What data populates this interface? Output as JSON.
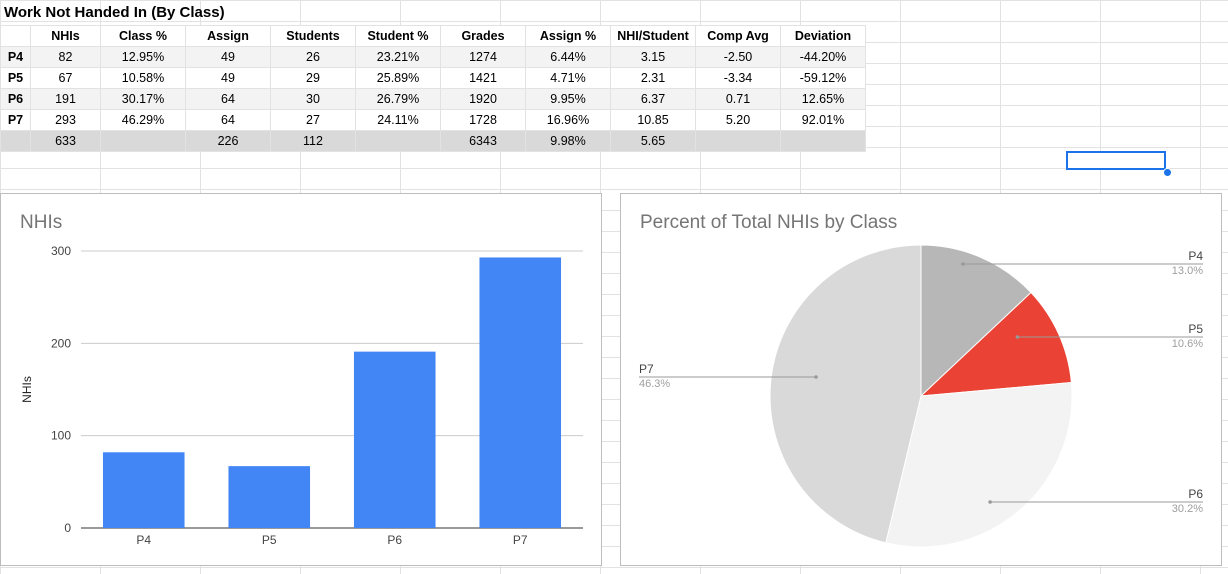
{
  "sheet": {
    "title": "Work Not Handed In (By Class)",
    "headers": [
      "NHIs",
      "Class %",
      "Assign",
      "Students",
      "Student %",
      "Grades",
      "Assign %",
      "NHI/Student",
      "Comp Avg",
      "Deviation"
    ],
    "rows": [
      {
        "label": "P4",
        "cells": [
          "82",
          "12.95%",
          "49",
          "26",
          "23.21%",
          "1274",
          "6.44%",
          "3.15",
          "-2.50",
          "-44.20%"
        ]
      },
      {
        "label": "P5",
        "cells": [
          "67",
          "10.58%",
          "49",
          "29",
          "25.89%",
          "1421",
          "4.71%",
          "2.31",
          "-3.34",
          "-59.12%"
        ]
      },
      {
        "label": "P6",
        "cells": [
          "191",
          "30.17%",
          "64",
          "30",
          "26.79%",
          "1920",
          "9.95%",
          "6.37",
          "0.71",
          "12.65%"
        ]
      },
      {
        "label": "P7",
        "cells": [
          "293",
          "46.29%",
          "64",
          "27",
          "24.11%",
          "1728",
          "16.96%",
          "10.85",
          "5.20",
          "92.01%"
        ]
      }
    ],
    "totals": [
      "633",
      "",
      "226",
      "112",
      "",
      "6343",
      "9.98%",
      "5.65",
      "",
      ""
    ]
  },
  "chart_data": [
    {
      "type": "bar",
      "title": "NHIs",
      "ylabel": "NHIs",
      "xlabel": "",
      "categories": [
        "P4",
        "P5",
        "P6",
        "P7"
      ],
      "values": [
        82,
        67,
        191,
        293
      ],
      "ylim": [
        0,
        300
      ],
      "yticks": [
        "0",
        "100",
        "200",
        "300"
      ],
      "grid": true,
      "color": "#4285f4"
    },
    {
      "type": "pie",
      "title": "Percent of Total NHIs by Class",
      "labels": [
        "P4",
        "P5",
        "P6",
        "P7"
      ],
      "values": [
        13.0,
        10.6,
        30.2,
        46.3
      ],
      "value_labels": [
        "13.0%",
        "10.6%",
        "30.2%",
        "46.3%"
      ],
      "colors": [
        "#b7b7b7",
        "#ea4335",
        "#f3f3f3",
        "#d9d9d9"
      ]
    }
  ],
  "selection_color": "#1a73e8"
}
